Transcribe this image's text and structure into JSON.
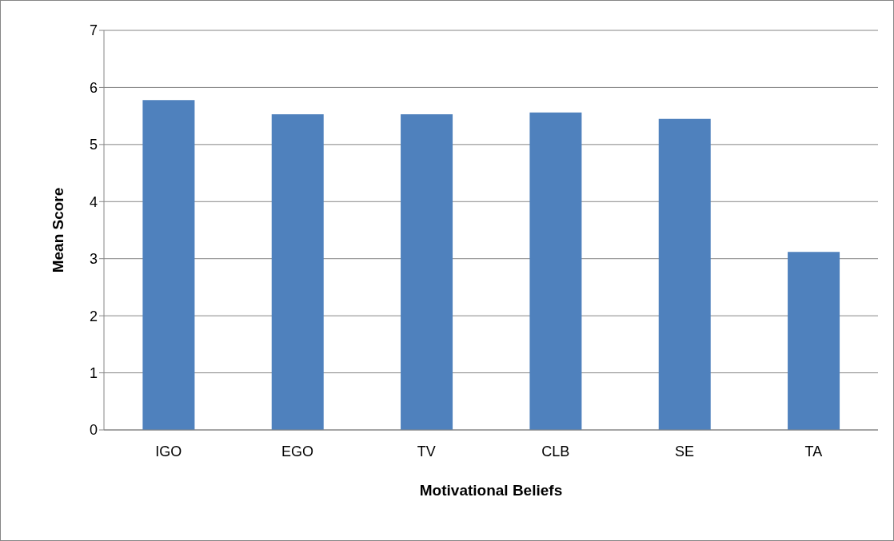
{
  "chart_data": {
    "type": "bar",
    "xlabel": "Motivational Beliefs",
    "ylabel": "Mean Score",
    "categories": [
      "IGO",
      "EGO",
      "TV",
      "CLB",
      "SE",
      "TA"
    ],
    "values": [
      5.78,
      5.53,
      5.53,
      5.56,
      5.45,
      3.12
    ],
    "color": "#4f81bd",
    "ylim": [
      0,
      7
    ],
    "yticks": [
      0,
      1,
      2,
      3,
      4,
      5,
      6,
      7
    ],
    "grid": "y"
  }
}
